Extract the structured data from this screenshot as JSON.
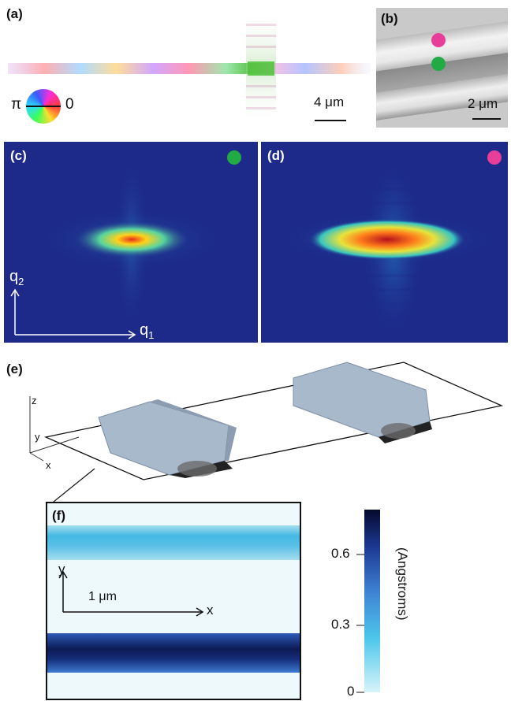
{
  "panels": {
    "a": {
      "label": "(a)",
      "scale_text": "4 μm",
      "phase_left": "π",
      "phase_right": "0"
    },
    "b": {
      "label": "(b)",
      "scale_text": "2 μm",
      "marker_colors": [
        "#e83e9a",
        "#22aa44"
      ]
    },
    "c": {
      "label": "(c)",
      "marker_color": "#22aa44",
      "axis_q2": "q",
      "axis_q2_sub": "2",
      "axis_q1": "q",
      "axis_q1_sub": "1"
    },
    "d": {
      "label": "(d)",
      "marker_color": "#e83e9a"
    },
    "e": {
      "label": "(e)",
      "axis_z": "z",
      "axis_y": "y",
      "axis_x": "x"
    },
    "f": {
      "label": "(f)",
      "axis_y": "y",
      "axis_x": "x",
      "scale_text": "1 μm"
    }
  },
  "colorbar": {
    "title": "(Angstroms)",
    "ticks": [
      "0.6",
      "0.3",
      "0"
    ]
  },
  "colors": {
    "diffraction_bg": "#1d2a8a",
    "iso_surface": "#a9b9cc"
  }
}
